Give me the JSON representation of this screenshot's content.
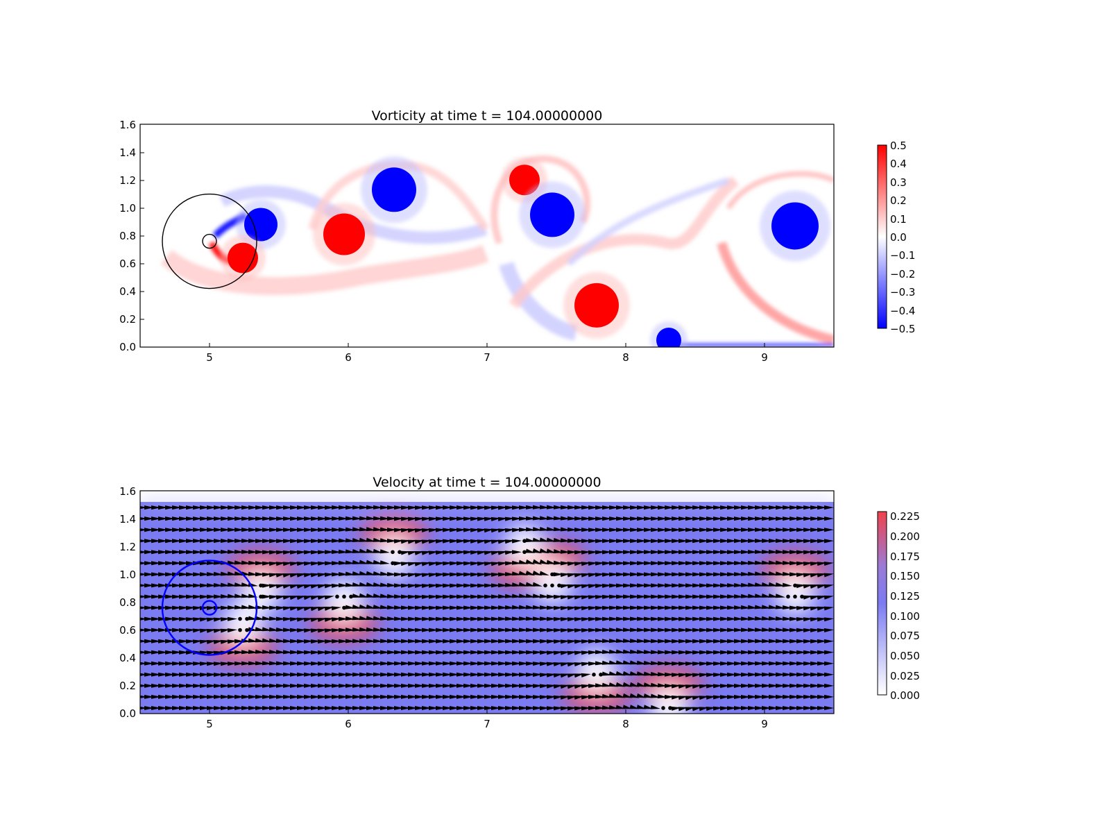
{
  "chart_data": [
    {
      "type": "heatmap",
      "title": "Vorticity at time t =   104.00000000",
      "xlabel": "",
      "ylabel": "",
      "xlim": [
        4.5,
        9.5
      ],
      "ylim": [
        0.0,
        1.6
      ],
      "x_ticks": [
        "5",
        "6",
        "7",
        "8",
        "9"
      ],
      "y_ticks": [
        "0.0",
        "0.2",
        "0.4",
        "0.6",
        "0.8",
        "1.0",
        "1.2",
        "1.4",
        "1.6"
      ],
      "colormap": "bwr",
      "colors": {
        "negative": "#0000ff",
        "zero": "#ffffff",
        "positive": "#ff0000"
      },
      "colorbar": {
        "range": [
          -0.5,
          0.5
        ],
        "ticks": [
          "0.5",
          "0.4",
          "0.3",
          "0.2",
          "0.1",
          "0.0",
          "−0.1",
          "−0.2",
          "−0.3",
          "−0.4",
          "−0.5"
        ]
      },
      "vortices": [
        {
          "x": 5.37,
          "y": 0.88,
          "r": 0.12,
          "vorticity": -0.5
        },
        {
          "x": 5.24,
          "y": 0.64,
          "r": 0.11,
          "vorticity": 0.5
        },
        {
          "x": 5.97,
          "y": 0.81,
          "r": 0.15,
          "vorticity": 0.5
        },
        {
          "x": 6.33,
          "y": 1.13,
          "r": 0.16,
          "vorticity": -0.5
        },
        {
          "x": 7.27,
          "y": 1.2,
          "r": 0.11,
          "vorticity": 0.5
        },
        {
          "x": 7.47,
          "y": 0.95,
          "r": 0.16,
          "vorticity": -0.5
        },
        {
          "x": 7.79,
          "y": 0.3,
          "r": 0.16,
          "vorticity": 0.5
        },
        {
          "x": 8.31,
          "y": 0.05,
          "r": 0.09,
          "vorticity": -0.5
        },
        {
          "x": 9.22,
          "y": 0.87,
          "r": 0.17,
          "vorticity": -0.5
        }
      ],
      "overlays": [
        {
          "shape": "circle",
          "center": [
            5.0,
            0.76
          ],
          "radius": 0.34,
          "color": "#000000"
        },
        {
          "shape": "circle",
          "center": [
            5.0,
            0.76
          ],
          "radius": 0.05,
          "color": "#000000"
        }
      ]
    },
    {
      "type": "heatmap",
      "title": "Velocity at time t =   104.00000000",
      "xlabel": "",
      "ylabel": "",
      "xlim": [
        4.5,
        9.5
      ],
      "ylim": [
        0.0,
        1.6
      ],
      "x_ticks": [
        "5",
        "6",
        "7",
        "8",
        "9"
      ],
      "y_ticks": [
        "0.0",
        "0.2",
        "0.4",
        "0.6",
        "0.8",
        "1.0",
        "1.2",
        "1.4",
        "1.6"
      ],
      "field_top": 1.52,
      "background_speed": 0.1,
      "colormap": "coolwarm-from-white",
      "colors": {
        "low": "#ffffff",
        "mid": "#7b7bf2",
        "high": "#f0424c"
      },
      "colorbar": {
        "range": [
          0.0,
          0.23
        ],
        "ticks": [
          "0.225",
          "0.200",
          "0.175",
          "0.150",
          "0.125",
          "0.100",
          "0.075",
          "0.050",
          "0.025",
          "0.000"
        ]
      },
      "overlays": [
        {
          "shape": "circle",
          "center": [
            5.0,
            0.76
          ],
          "radius": 0.34,
          "color": "#0000ff"
        },
        {
          "shape": "circle",
          "center": [
            5.0,
            0.76
          ],
          "radius": 0.05,
          "color": "#0000ff"
        }
      ],
      "quiver": {
        "color": "#000000",
        "direction_default": "right"
      }
    }
  ]
}
